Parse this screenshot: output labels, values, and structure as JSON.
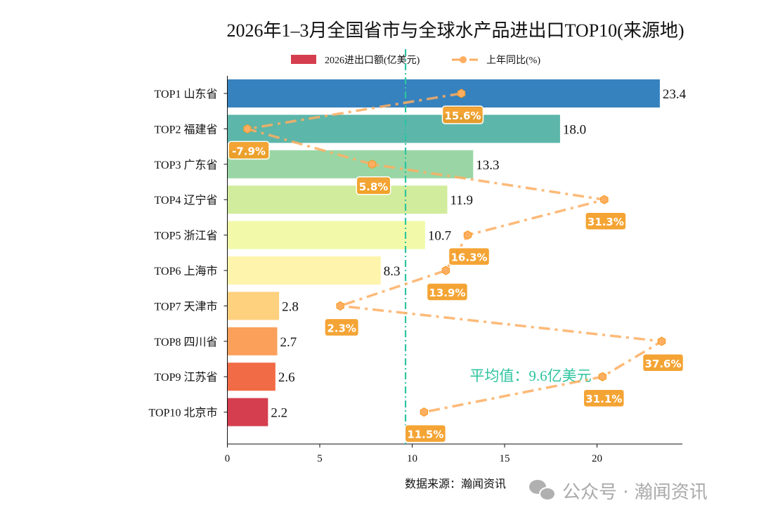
{
  "chart_data": {
    "type": "bar",
    "orientation": "horizontal",
    "title": "2026年1–3月全国省市与全球水产品进出口TOP10(来源地)",
    "categories": [
      "TOP1 山东省",
      "TOP2 福建省",
      "TOP3 广东省",
      "TOP4 辽宁省",
      "TOP5 浙江省",
      "TOP6 上海市",
      "TOP7 天津市",
      "TOP8 四川省",
      "TOP9 江苏省",
      "TOP10 北京市"
    ],
    "series": [
      {
        "name": "2026进出口额(亿美元)",
        "type": "bar",
        "values": [
          23.4,
          18.0,
          13.3,
          11.9,
          10.7,
          8.3,
          2.8,
          2.7,
          2.6,
          2.2
        ],
        "value_labels": [
          "23.4",
          "18.0",
          "13.3",
          "11.9",
          "10.7",
          "8.3",
          "2.8",
          "2.7",
          "2.6",
          "2.2"
        ],
        "colors": [
          "#3682be",
          "#5cb6a9",
          "#9ad6a5",
          "#d1ec9c",
          "#f2faaa",
          "#fef4ab",
          "#fed17f",
          "#fba05b",
          "#f26b47",
          "#d53e4f"
        ]
      },
      {
        "name": "上年同比(%)",
        "type": "line",
        "values": [
          15.6,
          -7.9,
          5.8,
          31.3,
          16.3,
          13.9,
          2.3,
          37.6,
          31.1,
          11.5
        ],
        "value_labels": [
          "15.6%",
          "-7.9%",
          "5.8%",
          "31.3%",
          "16.3%",
          "13.9%",
          "2.3%",
          "37.6%",
          "31.1%",
          "11.5%"
        ],
        "color": "#fdae61",
        "label_color": "#f39a1e"
      }
    ],
    "xlim": [
      0,
      24.6
    ],
    "xticks": [
      "0",
      "5",
      "10",
      "15",
      "20"
    ],
    "y2_range": [
      -10.1,
      39.8
    ],
    "average": {
      "value": 9.64,
      "label": "平均值：9.6亿美元",
      "color": "#2ec4a0"
    },
    "legend": {
      "placement": "top-center",
      "entries": [
        "2026进出口额(亿美元)",
        "上年同比(%)"
      ]
    },
    "grid": false
  },
  "source": "数据来源：瀚闻资讯",
  "watermark": "公众号 · 瀚闻资讯"
}
